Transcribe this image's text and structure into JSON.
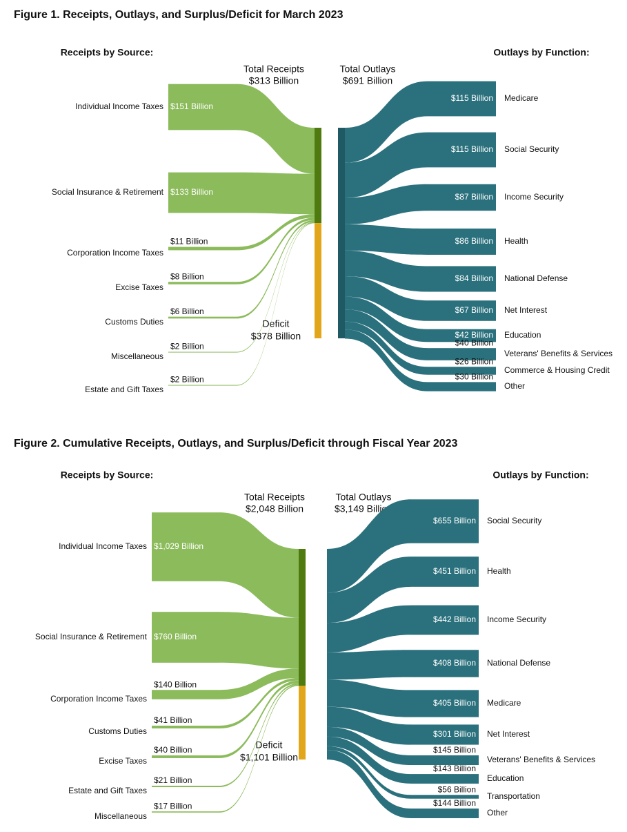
{
  "chart_data": [
    {
      "type": "sankey",
      "title": "Figure 1. Receipts, Outlays, and Surplus/Deficit for March 2023",
      "receipts_title": "Receipts by Source:",
      "outlays_title": "Outlays by Function:",
      "total_receipts": {
        "label": "Total Receipts",
        "value": 313,
        "value_label": "$313 Billion",
        "color": "#4f7a0f"
      },
      "total_outlays": {
        "label": "Total Outlays",
        "value": 691,
        "value_label": "$691 Billion",
        "color": "#1f5a64"
      },
      "deficit": {
        "label": "Deficit",
        "value": 378,
        "value_label": "$378 Billion",
        "color": "#e2a61b"
      },
      "receipts": {
        "color": "#8cbb5c",
        "categories": [
          "Individual Income Taxes",
          "Social Insurance & Retirement",
          "Corporation Income Taxes",
          "Excise Taxes",
          "Customs Duties",
          "Miscellaneous",
          "Estate and Gift Taxes"
        ],
        "values": [
          151,
          133,
          11,
          8,
          6,
          2,
          2
        ],
        "value_labels": [
          "$151 Billion",
          "$133 Billion",
          "$11 Billion",
          "$8 Billion",
          "$6 Billion",
          "$2 Billion",
          "$2 Billion"
        ]
      },
      "outlays": {
        "color": "#2b717d",
        "categories": [
          "Medicare",
          "Social Security",
          "Income Security",
          "Health",
          "National Defense",
          "Net Interest",
          "Education",
          "Veterans' Benefits & Services",
          "Commerce & Housing Credit",
          "Other"
        ],
        "values": [
          115,
          115,
          87,
          86,
          84,
          67,
          42,
          40,
          26,
          30
        ],
        "value_labels": [
          "$115 Billion",
          "$115 Billion",
          "$87 Billion",
          "$86 Billion",
          "$84 Billion",
          "$67 Billion",
          "$42 Billion",
          "$40 Billion",
          "$26 Billion",
          "$30 Billion"
        ]
      }
    },
    {
      "type": "sankey",
      "title": "Figure 2. Cumulative Receipts, Outlays, and Surplus/Deficit through Fiscal Year 2023",
      "receipts_title": "Receipts by Source:",
      "outlays_title": "Outlays by Function:",
      "total_receipts": {
        "label": "Total Receipts",
        "value": 2048,
        "value_label": "$2,048 Billion",
        "color": "#4f7a0f"
      },
      "total_outlays": {
        "label": "Total Outlays",
        "value": 3149,
        "value_label": "$3,149 Billion",
        "color": "#1f5a64"
      },
      "deficit": {
        "label": "Deficit",
        "value": 1101,
        "value_label": "$1,101 Billion",
        "color": "#e2a61b"
      },
      "receipts": {
        "color": "#8cbb5c",
        "categories": [
          "Individual Income Taxes",
          "Social Insurance & Retirement",
          "Corporation Income Taxes",
          "Customs Duties",
          "Excise Taxes",
          "Estate and Gift Taxes",
          "Miscellaneous"
        ],
        "values": [
          1029,
          760,
          140,
          41,
          40,
          21,
          17
        ],
        "value_labels": [
          "$1,029 Billion",
          "$760 Billion",
          "$140 Billion",
          "$41 Billion",
          "$40 Billion",
          "$21 Billion",
          "$17 Billion"
        ]
      },
      "outlays": {
        "color": "#2b717d",
        "categories": [
          "Social Security",
          "Health",
          "Income Security",
          "National Defense",
          "Medicare",
          "Net Interest",
          "Veterans' Benefits & Services",
          "Education",
          "Transportation",
          "Other"
        ],
        "values": [
          655,
          451,
          442,
          408,
          405,
          301,
          145,
          143,
          56,
          144
        ],
        "value_labels": [
          "$655 Billion",
          "$451 Billion",
          "$442 Billion",
          "$408 Billion",
          "$405 Billion",
          "$301 Billion",
          "$145 Billion",
          "$143 Billion",
          "$56 Billion",
          "$144 Billion"
        ]
      }
    }
  ]
}
